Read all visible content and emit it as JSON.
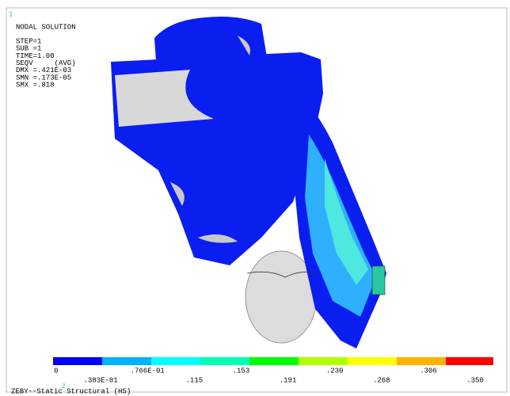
{
  "header": {
    "marker": "1",
    "title": "NODAL SOLUTION",
    "lines": [
      "STEP=1",
      "SUB =1",
      "TIME=1.00",
      "SEQV     (AVG)",
      "DMX =.421E-03",
      "SMN =.173E-05",
      "SMX =.818"
    ]
  },
  "legend": {
    "labels": [
      "0",
      ".383E-01",
      ".766E-01",
      ".115",
      ".153",
      ".191",
      ".230",
      ".268",
      ".306",
      ".350"
    ]
  },
  "footer": {
    "axis": "Z",
    "title": "ZEBY--Static Structural (H5)"
  }
}
